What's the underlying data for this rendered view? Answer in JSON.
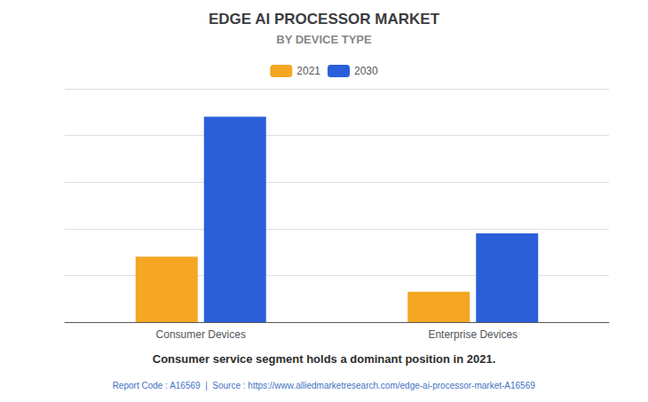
{
  "chart_data": {
    "type": "bar",
    "title": "EDGE AI PROCESSOR MARKET",
    "subtitle": "BY DEVICE TYPE",
    "categories": [
      "Consumer Devices",
      "Enterprise Devices"
    ],
    "series": [
      {
        "name": "2021",
        "color": "#F5A623",
        "values": [
          28,
          13
        ]
      },
      {
        "name": "2030",
        "color": "#2B5FD9",
        "values": [
          88,
          38
        ]
      }
    ],
    "ylim": [
      0,
      100
    ],
    "yticks": [
      0,
      20,
      40,
      60,
      80,
      100
    ],
    "grid": true,
    "tick_labels": "x",
    "legend": "top",
    "annotations": [
      "Consumer service segment holds a dominant position in 2021.",
      "Report Code : A16569  |  Source : https://www.alliedmarketresearch.com/edge-ai-processor-market-A16569"
    ]
  }
}
